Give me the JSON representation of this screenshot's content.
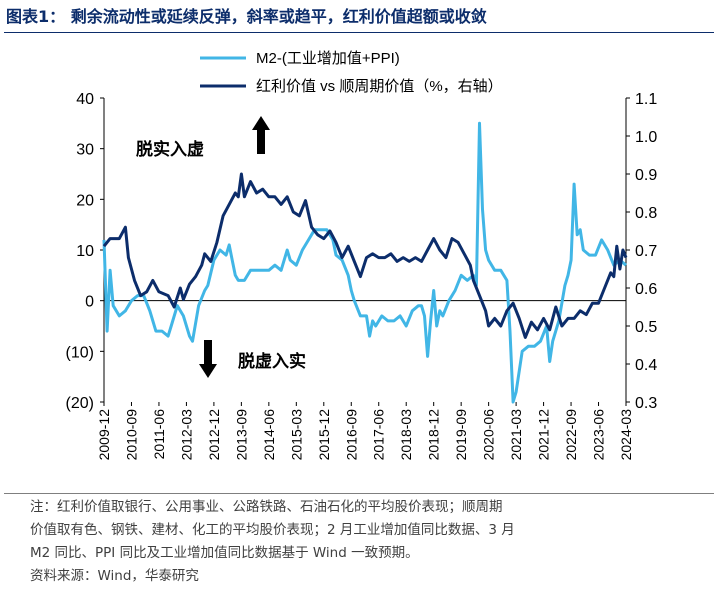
{
  "title": "图表1： 剩余流动性或延续反弹，斜率或趋平，红利价值超额或收敛",
  "colors": {
    "m2": "#41b6e6",
    "ratio": "#0c2d6b",
    "title": "#0c2d6b"
  },
  "chart_data": {
    "type": "line",
    "x_tick_labels": [
      "2009-12",
      "2010-09",
      "2011-06",
      "2012-03",
      "2012-12",
      "2013-09",
      "2014-06",
      "2015-03",
      "2015-12",
      "2016-09",
      "2017-06",
      "2018-03",
      "2018-12",
      "2019-09",
      "2020-06",
      "2021-03",
      "2021-12",
      "2022-09",
      "2023-06",
      "2024-03"
    ],
    "x_range": [
      "2009-12",
      "2024-03"
    ],
    "y_left": {
      "min": -20,
      "max": 40,
      "ticks": [
        40,
        30,
        20,
        10,
        0,
        -10,
        -20
      ],
      "tick_labels": [
        "40",
        "30",
        "20",
        "10",
        "0",
        "(10)",
        "(20)"
      ]
    },
    "y_right": {
      "min": 0.3,
      "max": 1.1,
      "ticks": [
        1.1,
        1.0,
        0.9,
        0.8,
        0.7,
        0.6,
        0.5,
        0.4,
        0.3
      ],
      "tick_labels": [
        "1.1",
        "1.0",
        "0.9",
        "0.8",
        "0.7",
        "0.6",
        "0.5",
        "0.4",
        "0.3"
      ]
    },
    "legend_position": "top-center",
    "annotations": [
      {
        "text": "脱实入虚",
        "arrow": "up"
      },
      {
        "text": "脱虚入实",
        "arrow": "down"
      }
    ],
    "series": [
      {
        "name": "M2-(工业增加值+PPI)",
        "axis": "left",
        "color": "#41b6e6",
        "points": [
          [
            "2009-12",
            12
          ],
          [
            "2010-01",
            -6
          ],
          [
            "2010-02",
            6
          ],
          [
            "2010-03",
            -1
          ],
          [
            "2010-05",
            -3
          ],
          [
            "2010-07",
            -2
          ],
          [
            "2010-09",
            0
          ],
          [
            "2010-11",
            1
          ],
          [
            "2011-01",
            1
          ],
          [
            "2011-03",
            -2
          ],
          [
            "2011-05",
            -6
          ],
          [
            "2011-07",
            -6
          ],
          [
            "2011-09",
            -7
          ],
          [
            "2011-10",
            -5
          ],
          [
            "2011-12",
            -1
          ],
          [
            "2012-02",
            -3
          ],
          [
            "2012-04",
            -7
          ],
          [
            "2012-05",
            -8
          ],
          [
            "2012-07",
            -1
          ],
          [
            "2012-09",
            2
          ],
          [
            "2012-10",
            3
          ],
          [
            "2012-12",
            8
          ],
          [
            "2013-02",
            10
          ],
          [
            "2013-04",
            9
          ],
          [
            "2013-05",
            11
          ],
          [
            "2013-06",
            8
          ],
          [
            "2013-07",
            5
          ],
          [
            "2013-08",
            4
          ],
          [
            "2013-10",
            4
          ],
          [
            "2013-12",
            6
          ],
          [
            "2014-02",
            6
          ],
          [
            "2014-04",
            6
          ],
          [
            "2014-06",
            6
          ],
          [
            "2014-08",
            7
          ],
          [
            "2014-10",
            6
          ],
          [
            "2014-12",
            10
          ],
          [
            "2015-01",
            8
          ],
          [
            "2015-03",
            7
          ],
          [
            "2015-05",
            10
          ],
          [
            "2015-07",
            12
          ],
          [
            "2015-09",
            14
          ],
          [
            "2015-11",
            14
          ],
          [
            "2016-01",
            14
          ],
          [
            "2016-03",
            12
          ],
          [
            "2016-04",
            9
          ],
          [
            "2016-06",
            8
          ],
          [
            "2016-08",
            5
          ],
          [
            "2016-09",
            2
          ],
          [
            "2016-10",
            0
          ],
          [
            "2016-12",
            -3
          ],
          [
            "2017-02",
            -3
          ],
          [
            "2017-03",
            -7
          ],
          [
            "2017-04",
            -4
          ],
          [
            "2017-05",
            -5
          ],
          [
            "2017-07",
            -3
          ],
          [
            "2017-09",
            -4
          ],
          [
            "2017-11",
            -4
          ],
          [
            "2018-01",
            -3
          ],
          [
            "2018-03",
            -5
          ],
          [
            "2018-05",
            -2
          ],
          [
            "2018-07",
            -1
          ],
          [
            "2018-08",
            -1
          ],
          [
            "2018-09",
            -3
          ],
          [
            "2018-10",
            -11
          ],
          [
            "2018-11",
            -4
          ],
          [
            "2018-12",
            2
          ],
          [
            "2019-01",
            -5
          ],
          [
            "2019-02",
            -2
          ],
          [
            "2019-03",
            -3
          ],
          [
            "2019-05",
            0
          ],
          [
            "2019-07",
            2
          ],
          [
            "2019-09",
            5
          ],
          [
            "2019-11",
            4
          ],
          [
            "2020-01",
            5
          ],
          [
            "2020-02",
            3
          ],
          [
            "2020-03",
            35
          ],
          [
            "2020-04",
            18
          ],
          [
            "2020-05",
            10
          ],
          [
            "2020-06",
            8
          ],
          [
            "2020-08",
            6
          ],
          [
            "2020-10",
            6
          ],
          [
            "2020-12",
            4
          ],
          [
            "2021-01",
            -6
          ],
          [
            "2021-02",
            -20
          ],
          [
            "2021-03",
            -18
          ],
          [
            "2021-05",
            -10
          ],
          [
            "2021-07",
            -9
          ],
          [
            "2021-09",
            -9
          ],
          [
            "2021-11",
            -8
          ],
          [
            "2022-01",
            -5
          ],
          [
            "2022-02",
            -12
          ],
          [
            "2022-03",
            -8
          ],
          [
            "2022-05",
            -4
          ],
          [
            "2022-07",
            3
          ],
          [
            "2022-08",
            5
          ],
          [
            "2022-09",
            8
          ],
          [
            "2022-10",
            23
          ],
          [
            "2022-11",
            13
          ],
          [
            "2022-12",
            14
          ],
          [
            "2023-01",
            10
          ],
          [
            "2023-03",
            9
          ],
          [
            "2023-05",
            9
          ],
          [
            "2023-07",
            12
          ],
          [
            "2023-09",
            10
          ],
          [
            "2023-11",
            7
          ],
          [
            "2024-01",
            8
          ],
          [
            "2024-03",
            7
          ]
        ]
      },
      {
        "name": "红利价值 vs 顺周期价值（%，右轴）",
        "axis": "right",
        "color": "#0c2d6b",
        "points": [
          [
            "2009-12",
            0.71
          ],
          [
            "2010-02",
            0.73
          ],
          [
            "2010-05",
            0.73
          ],
          [
            "2010-07",
            0.76
          ],
          [
            "2010-08",
            0.68
          ],
          [
            "2010-10",
            0.62
          ],
          [
            "2010-12",
            0.58
          ],
          [
            "2011-02",
            0.59
          ],
          [
            "2011-04",
            0.62
          ],
          [
            "2011-06",
            0.59
          ],
          [
            "2011-09",
            0.58
          ],
          [
            "2011-11",
            0.55
          ],
          [
            "2012-01",
            0.6
          ],
          [
            "2012-02",
            0.57
          ],
          [
            "2012-04",
            0.61
          ],
          [
            "2012-06",
            0.63
          ],
          [
            "2012-08",
            0.66
          ],
          [
            "2012-09",
            0.69
          ],
          [
            "2012-11",
            0.67
          ],
          [
            "2013-01",
            0.72
          ],
          [
            "2013-03",
            0.79
          ],
          [
            "2013-05",
            0.82
          ],
          [
            "2013-07",
            0.85
          ],
          [
            "2013-08",
            0.84
          ],
          [
            "2013-09",
            0.9
          ],
          [
            "2013-10",
            0.84
          ],
          [
            "2013-12",
            0.88
          ],
          [
            "2014-02",
            0.85
          ],
          [
            "2014-04",
            0.86
          ],
          [
            "2014-06",
            0.84
          ],
          [
            "2014-08",
            0.84
          ],
          [
            "2014-10",
            0.82
          ],
          [
            "2014-12",
            0.84
          ],
          [
            "2015-02",
            0.8
          ],
          [
            "2015-04",
            0.79
          ],
          [
            "2015-06",
            0.83
          ],
          [
            "2015-08",
            0.76
          ],
          [
            "2015-10",
            0.74
          ],
          [
            "2015-12",
            0.73
          ],
          [
            "2016-02",
            0.75
          ],
          [
            "2016-04",
            0.72
          ],
          [
            "2016-06",
            0.68
          ],
          [
            "2016-08",
            0.71
          ],
          [
            "2016-10",
            0.67
          ],
          [
            "2016-12",
            0.63
          ],
          [
            "2017-02",
            0.68
          ],
          [
            "2017-04",
            0.69
          ],
          [
            "2017-06",
            0.68
          ],
          [
            "2017-08",
            0.68
          ],
          [
            "2017-10",
            0.69
          ],
          [
            "2017-12",
            0.67
          ],
          [
            "2018-02",
            0.68
          ],
          [
            "2018-04",
            0.67
          ],
          [
            "2018-06",
            0.68
          ],
          [
            "2018-08",
            0.67
          ],
          [
            "2018-10",
            0.7
          ],
          [
            "2018-12",
            0.73
          ],
          [
            "2019-02",
            0.7
          ],
          [
            "2019-04",
            0.68
          ],
          [
            "2019-06",
            0.73
          ],
          [
            "2019-08",
            0.72
          ],
          [
            "2019-10",
            0.69
          ],
          [
            "2019-12",
            0.66
          ],
          [
            "2020-01",
            0.62
          ],
          [
            "2020-03",
            0.58
          ],
          [
            "2020-05",
            0.54
          ],
          [
            "2020-06",
            0.5
          ],
          [
            "2020-08",
            0.52
          ],
          [
            "2020-10",
            0.5
          ],
          [
            "2020-12",
            0.54
          ],
          [
            "2021-02",
            0.56
          ],
          [
            "2021-04",
            0.52
          ],
          [
            "2021-06",
            0.47
          ],
          [
            "2021-08",
            0.51
          ],
          [
            "2021-10",
            0.49
          ],
          [
            "2021-12",
            0.52
          ],
          [
            "2022-02",
            0.49
          ],
          [
            "2022-04",
            0.55
          ],
          [
            "2022-06",
            0.5
          ],
          [
            "2022-08",
            0.52
          ],
          [
            "2022-10",
            0.52
          ],
          [
            "2022-12",
            0.54
          ],
          [
            "2023-02",
            0.53
          ],
          [
            "2023-04",
            0.56
          ],
          [
            "2023-06",
            0.56
          ],
          [
            "2023-08",
            0.6
          ],
          [
            "2023-10",
            0.64
          ],
          [
            "2023-11",
            0.63
          ],
          [
            "2023-12",
            0.71
          ],
          [
            "2024-01",
            0.65
          ],
          [
            "2024-02",
            0.7
          ],
          [
            "2024-03",
            0.68
          ]
        ]
      }
    ]
  },
  "notes": [
    "注：红利价值取银行、公用事业、公路铁路、石油石化的平均股价表现；顺周期",
    "价值取有色、钢铁、建材、化工的平均股价表现；2 月工业增加值同比数据、3 月",
    "M2 同比、PPI 同比及工业增加值同比数据基于 Wind 一致预期。",
    "资料来源：Wind，华泰研究"
  ]
}
